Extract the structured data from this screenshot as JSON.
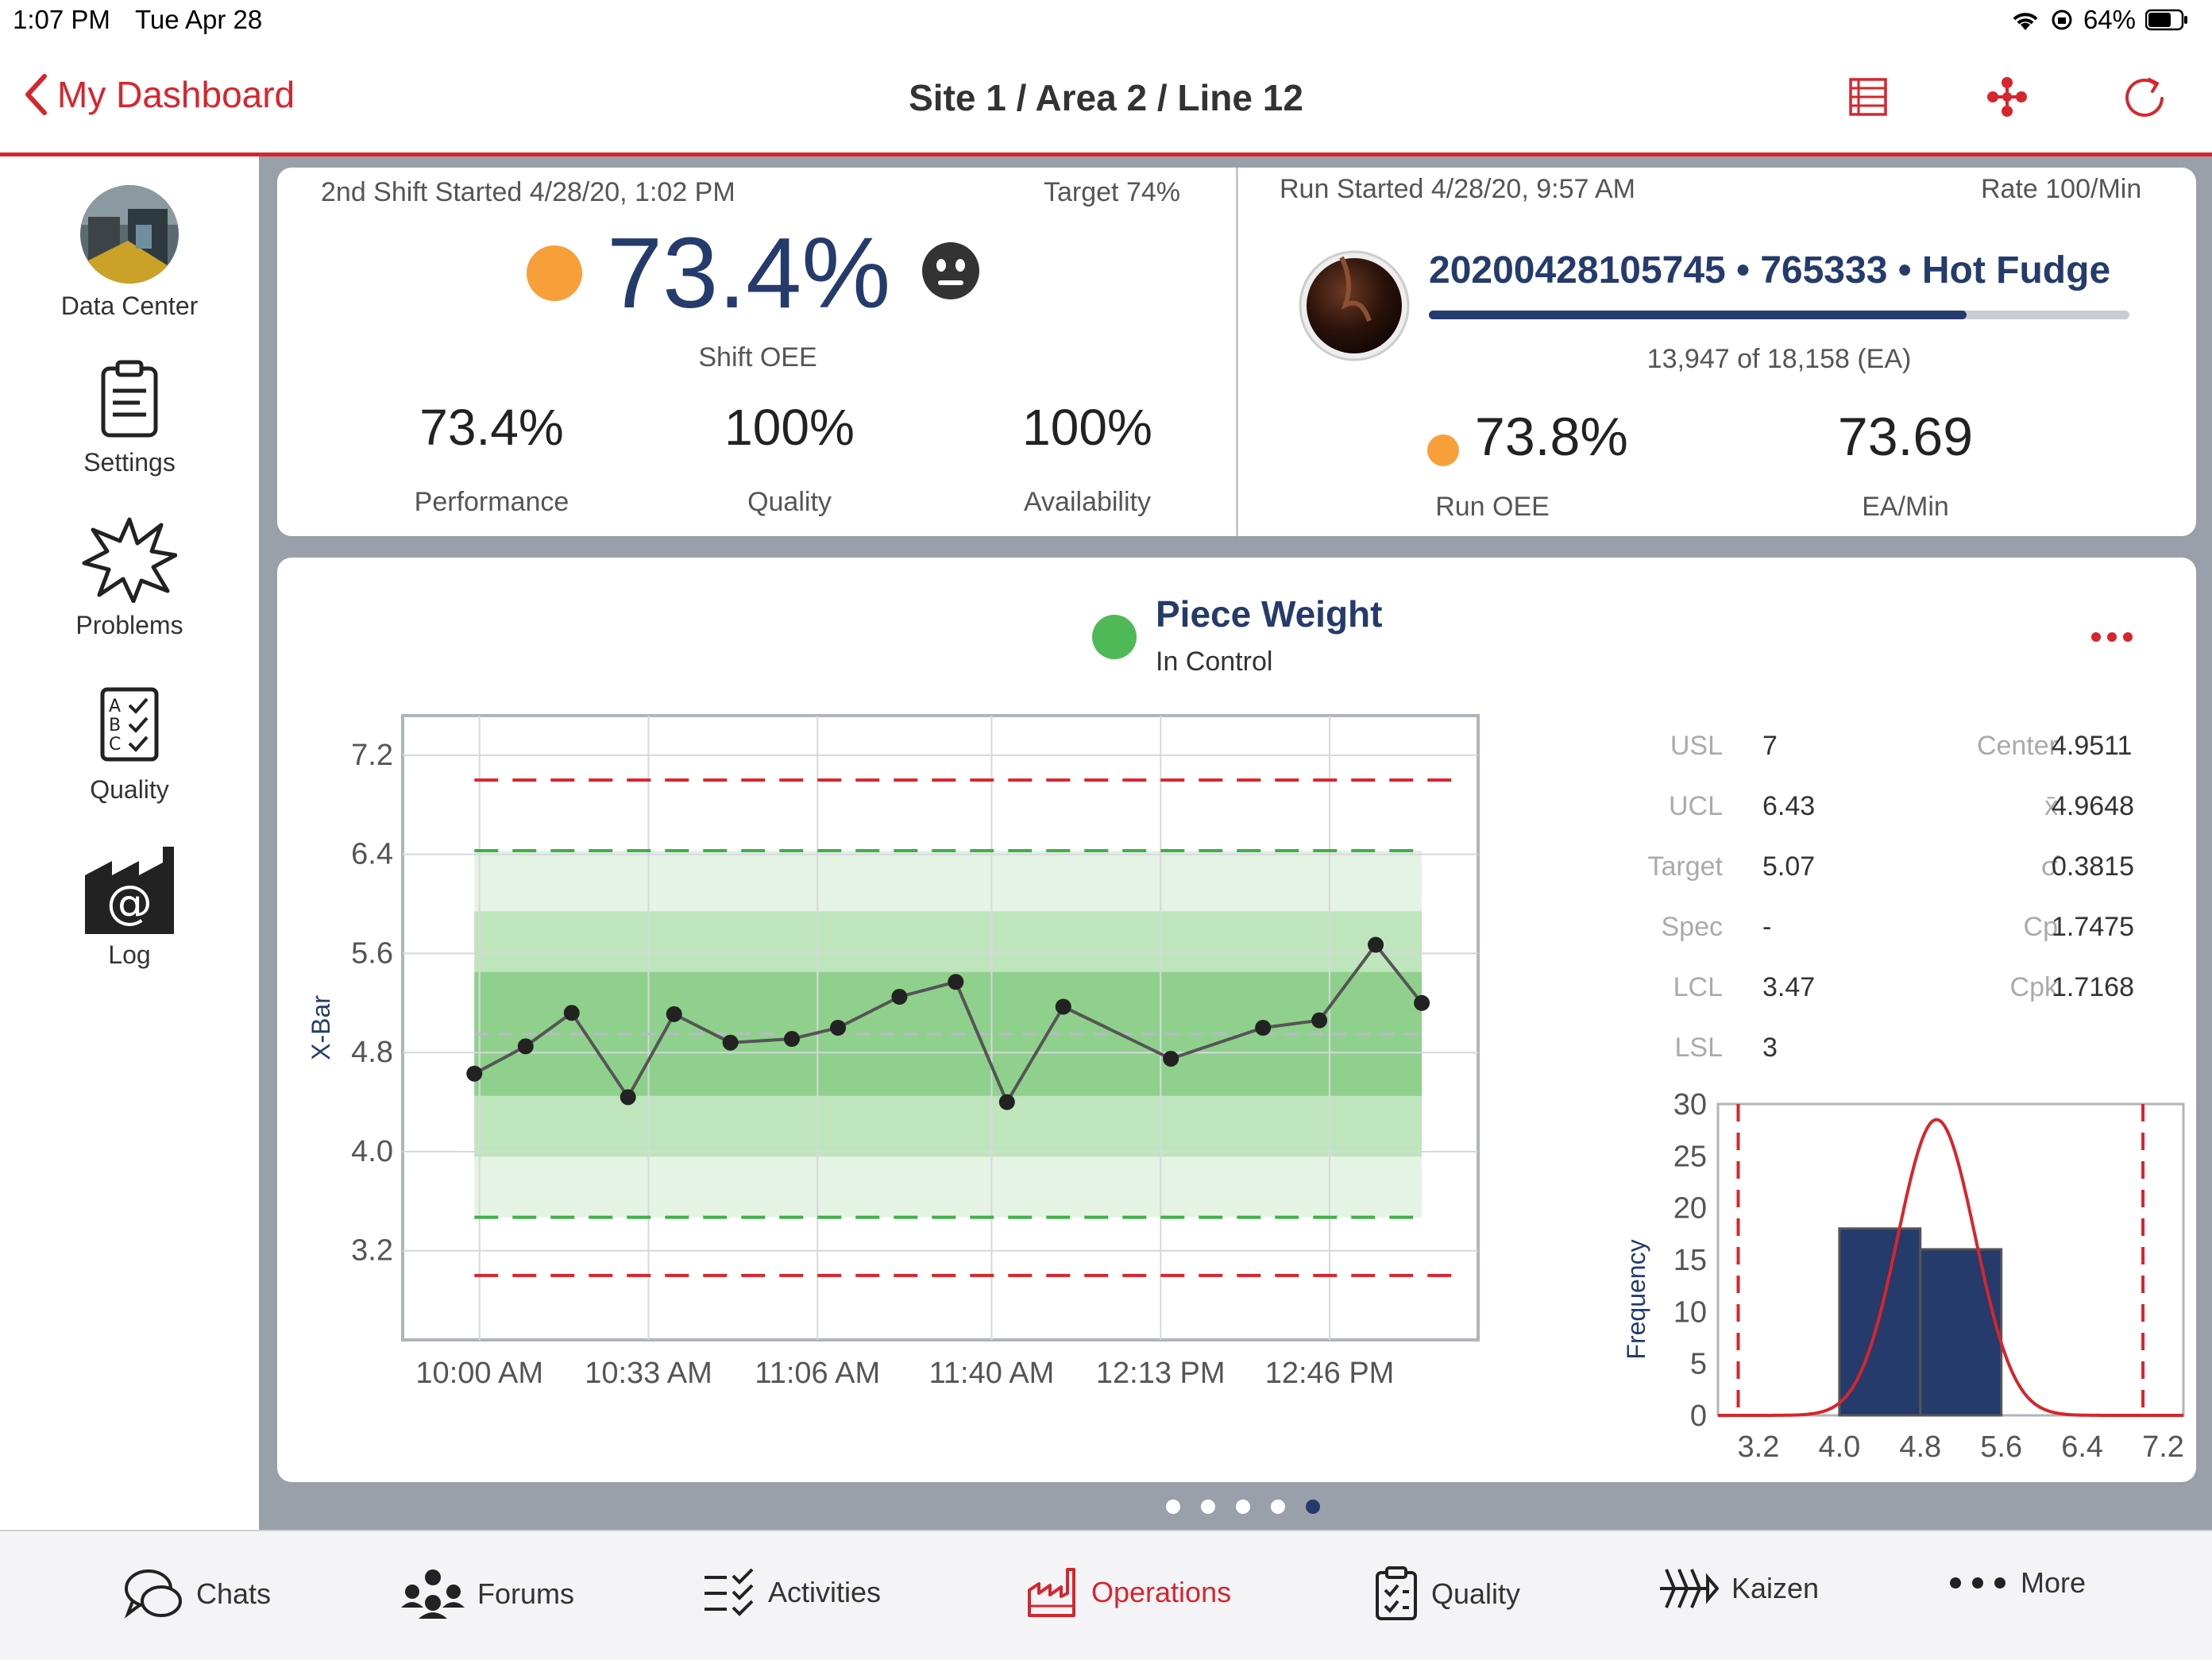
{
  "status": {
    "time": "1:07 PM",
    "date": "Tue Apr 28",
    "battery": "64%"
  },
  "nav": {
    "back_label": "My Dashboard",
    "title": "Site 1 / Area 2 / Line 12"
  },
  "sidebar": {
    "items": [
      {
        "label": "Data Center"
      },
      {
        "label": "Settings"
      },
      {
        "label": "Problems"
      },
      {
        "label": "Quality"
      },
      {
        "label": "Log"
      }
    ]
  },
  "shift": {
    "started": "2nd Shift Started 4/28/20, 1:02 PM",
    "target": "Target 74%",
    "oee": "73.4%",
    "oee_label": "Shift OEE",
    "status_color": "#f7a03a",
    "metrics": [
      {
        "value": "73.4%",
        "label": "Performance"
      },
      {
        "value": "100%",
        "label": "Quality"
      },
      {
        "value": "100%",
        "label": "Availability"
      }
    ]
  },
  "run": {
    "started": "Run Started 4/28/20, 9:57 AM",
    "rate": "Rate 100/Min",
    "product": "20200428105745 • 765333 • Hot Fudge",
    "progress_text": "13,947 of 18,158 (EA)",
    "progress_fraction": 0.768,
    "oee": "73.8%",
    "oee_label": "Run OEE",
    "rate_value": "73.69",
    "rate_label": "EA/Min"
  },
  "spc": {
    "title": "Piece Weight",
    "status": "In Control",
    "status_color": "#4fb957",
    "stats": [
      {
        "label": "USL",
        "value": "7",
        "label2": "Center",
        "value2": "4.9511"
      },
      {
        "label": "UCL",
        "value": "6.43",
        "label2": "x̄",
        "value2": "4.9648"
      },
      {
        "label": "Target",
        "value": "5.07",
        "label2": "σ̂",
        "value2": "0.3815"
      },
      {
        "label": "Spec",
        "value": "-",
        "label2": "Cp",
        "value2": "1.7475"
      },
      {
        "label": "LCL",
        "value": "3.47",
        "label2": "Cpk",
        "value2": "1.7168"
      },
      {
        "label": "LSL",
        "value": "3",
        "label2": "",
        "value2": ""
      }
    ]
  },
  "chart_data": [
    {
      "type": "line",
      "ylabel": "X-Bar",
      "ylim": [
        2.5,
        7.4
      ],
      "yticks": [
        "7.2",
        "6.4",
        "5.6",
        "4.8",
        "4.0",
        "3.2"
      ],
      "ytick_values": [
        7.2,
        6.4,
        5.6,
        4.8,
        4.0,
        3.2
      ],
      "xticks": [
        "10:00 AM",
        "10:33 AM",
        "11:06 AM",
        "11:40 AM",
        "12:13 PM",
        "12:46 PM"
      ],
      "xtick_minutes": [
        0,
        33,
        66,
        100,
        133,
        166
      ],
      "x_minutes": [
        -1,
        9,
        18,
        29,
        38,
        49,
        61,
        70,
        82,
        93,
        103,
        114,
        135,
        153,
        164,
        175,
        184
      ],
      "values": [
        4.63,
        4.85,
        5.12,
        4.44,
        5.11,
        4.88,
        4.91,
        5.0,
        5.25,
        5.37,
        4.4,
        5.17,
        4.75,
        5.0,
        5.06,
        5.67,
        5.2
      ],
      "usl": 7.0,
      "ucl": 6.43,
      "center": 4.95,
      "lcl": 3.47,
      "lsl": 3.0,
      "zones": [
        [
          3.47,
          6.43
        ],
        [
          3.96,
          5.94
        ],
        [
          4.45,
          5.45
        ]
      ],
      "grid": true
    },
    {
      "type": "bar",
      "ylabel": "Frequency",
      "ylim": [
        0,
        30
      ],
      "yticks": [
        "30",
        "25",
        "20",
        "15",
        "10",
        "5",
        "0"
      ],
      "xticks": [
        "3.2",
        "4.0",
        "4.8",
        "5.6",
        "6.4",
        "7.2"
      ],
      "xlim": [
        2.8,
        7.4
      ],
      "bins": [
        [
          4.0,
          4.8
        ],
        [
          4.8,
          5.6
        ]
      ],
      "values": [
        18,
        16
      ],
      "spec_limits": [
        3.0,
        7.0
      ],
      "curve": {
        "mean": 4.96,
        "sigma": 0.3815,
        "peak": 28.5
      }
    }
  ],
  "pager": {
    "count": 5,
    "active": 4
  },
  "tabs": [
    {
      "label": "Chats"
    },
    {
      "label": "Forums"
    },
    {
      "label": "Activities"
    },
    {
      "label": "Operations"
    },
    {
      "label": "Quality"
    },
    {
      "label": "Kaizen"
    },
    {
      "label": "More"
    }
  ],
  "colors": {
    "accent": "#d7252c",
    "navy": "#243b6b",
    "warning": "#f7a03a",
    "ok": "#4fb957"
  }
}
